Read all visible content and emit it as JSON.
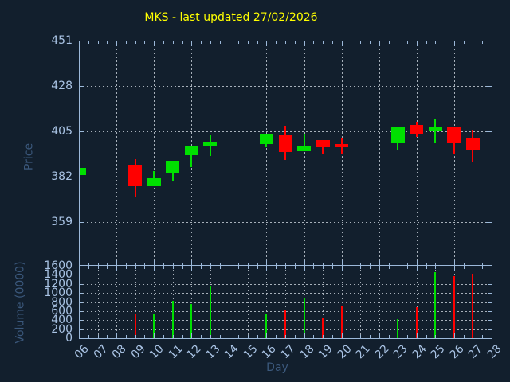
{
  "colors": {
    "background": "#121f2d",
    "title": "#ffff00",
    "spine": "#9cb9da",
    "tick_label": "#a9c3e4",
    "axis_title": "#3b587c",
    "grid": "#a7b0ba",
    "up": "#00e000",
    "down": "#ff0000"
  },
  "chart_data": {
    "type": "candlestick",
    "title": "MKS - last updated 27/02/2026",
    "xlabel": "Day",
    "x_ticklabels": [
      "06",
      "07",
      "08",
      "09",
      "10",
      "11",
      "12",
      "13",
      "14",
      "15",
      "16",
      "17",
      "18",
      "19",
      "20",
      "21",
      "22",
      "23",
      "24",
      "25",
      "26",
      "27",
      "28"
    ],
    "x_first_day": 6,
    "x_last_day": 28,
    "legend": "none",
    "grid": "dashed",
    "price_panel": {
      "ylabel": "Price",
      "ylim": [
        337,
        451
      ],
      "yticks": [
        359,
        382,
        405,
        428,
        451
      ],
      "grid_x_every_days": 2
    },
    "volume_panel": {
      "ylabel": "Volume (0000)",
      "ylim": [
        0,
        1600
      ],
      "yticks": [
        0,
        200,
        400,
        600,
        800,
        1000,
        1200,
        1400,
        1600
      ],
      "grid_x_every_days": 1
    },
    "candles": [
      {
        "day": 6,
        "open": 383,
        "high": 386.5,
        "low": 383,
        "close": 386.5,
        "volume": 0
      },
      {
        "day": 9,
        "open": 388,
        "high": 391,
        "low": 372,
        "close": 377,
        "volume": 540
      },
      {
        "day": 10,
        "open": 377.5,
        "high": 385,
        "low": 377.5,
        "close": 381.5,
        "volume": 550
      },
      {
        "day": 11,
        "open": 384,
        "high": 390,
        "low": 380,
        "close": 390,
        "volume": 830
      },
      {
        "day": 12,
        "open": 393,
        "high": 397.5,
        "low": 387,
        "close": 397.5,
        "volume": 760
      },
      {
        "day": 13,
        "open": 397.5,
        "high": 403,
        "low": 392.5,
        "close": 399.5,
        "volume": 1160
      },
      {
        "day": 16,
        "open": 398.5,
        "high": 403.5,
        "low": 397,
        "close": 403.5,
        "volume": 550
      },
      {
        "day": 17,
        "open": 403,
        "high": 408,
        "low": 390.5,
        "close": 394.5,
        "volume": 620
      },
      {
        "day": 18,
        "open": 395,
        "high": 403.5,
        "low": 395,
        "close": 397.5,
        "volume": 890
      },
      {
        "day": 19,
        "open": 400.5,
        "high": 400.5,
        "low": 393.5,
        "close": 397,
        "volume": 445
      },
      {
        "day": 20,
        "open": 398.5,
        "high": 402,
        "low": 393.5,
        "close": 397,
        "volume": 700
      },
      {
        "day": 23,
        "open": 399,
        "high": 407.5,
        "low": 395.5,
        "close": 407.5,
        "volume": 420
      },
      {
        "day": 24,
        "open": 408.5,
        "high": 410,
        "low": 402.5,
        "close": 403.5,
        "volume": 690
      },
      {
        "day": 25,
        "open": 405,
        "high": 411,
        "low": 399,
        "close": 407.5,
        "volume": 1460
      },
      {
        "day": 26,
        "open": 407.5,
        "high": 407.5,
        "low": 393.5,
        "close": 399,
        "volume": 1380
      },
      {
        "day": 27,
        "open": 402,
        "high": 406,
        "low": 390,
        "close": 396,
        "volume": 1420
      }
    ]
  }
}
